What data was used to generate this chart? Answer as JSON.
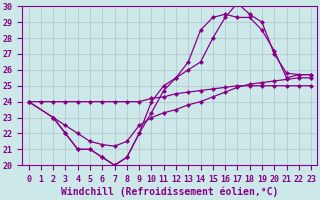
{
  "xlabel": "Windchill (Refroidissement éolien,°C)",
  "xlim": [
    -0.5,
    23.5
  ],
  "ylim": [
    20,
    30
  ],
  "xticks": [
    0,
    1,
    2,
    3,
    4,
    5,
    6,
    7,
    8,
    9,
    10,
    11,
    12,
    13,
    14,
    15,
    16,
    17,
    18,
    19,
    20,
    21,
    22,
    23
  ],
  "yticks": [
    20,
    21,
    22,
    23,
    24,
    25,
    26,
    27,
    28,
    29,
    30
  ],
  "background_color": "#cce8e8",
  "grid_color": "#b0c4cc",
  "line_color": "#880088",
  "line1_x": [
    0,
    1,
    2,
    3,
    4,
    5,
    6,
    7,
    8,
    9,
    10,
    11,
    12,
    13,
    14,
    15,
    16,
    17,
    18,
    19,
    20,
    21,
    22,
    23
  ],
  "line1_y": [
    24,
    24,
    24,
    24,
    24,
    24,
    24,
    24,
    24,
    24,
    24.2,
    24.3,
    24.5,
    24.6,
    24.7,
    24.8,
    24.9,
    25,
    25,
    25,
    25,
    25,
    25,
    25
  ],
  "line2_x": [
    0,
    2,
    3,
    4,
    5,
    6,
    7,
    8,
    9,
    10,
    11,
    12,
    13,
    14,
    15,
    16,
    17,
    18,
    19,
    20,
    21,
    22,
    23
  ],
  "line2_y": [
    24,
    23,
    22,
    21,
    21,
    20.5,
    20,
    20.5,
    22,
    23.3,
    24.7,
    25.5,
    26,
    26.5,
    28,
    29.3,
    30.2,
    29.5,
    29,
    27,
    25.8,
    25.7,
    25.7
  ],
  "line3_x": [
    0,
    2,
    3,
    4,
    5,
    6,
    7,
    8,
    9,
    10,
    11,
    12,
    13,
    14,
    15,
    16,
    17,
    18,
    19,
    20,
    21,
    22,
    23
  ],
  "line3_y": [
    24,
    23,
    22,
    21,
    21,
    20.5,
    20,
    20.5,
    22,
    24,
    25,
    25.5,
    26.5,
    28.5,
    29.3,
    29.5,
    29.3,
    29.3,
    28.5,
    27.2,
    25.5,
    25.7,
    25.7
  ],
  "line4_x": [
    2,
    3,
    4,
    5,
    6,
    7,
    8,
    9,
    10,
    11,
    12,
    13,
    14,
    15,
    16,
    17,
    18,
    19,
    20,
    21,
    22,
    23
  ],
  "line4_y": [
    23,
    22.5,
    22,
    21.5,
    21.3,
    21.2,
    21.5,
    22.5,
    23,
    23.3,
    23.5,
    23.8,
    24,
    24.3,
    24.6,
    24.9,
    25.1,
    25.2,
    25.3,
    25.4,
    25.5,
    25.5
  ],
  "marker": "D",
  "marker_size": 2.5,
  "line_width": 0.9,
  "font_size_xlabel": 7,
  "tick_labelsize": 6
}
